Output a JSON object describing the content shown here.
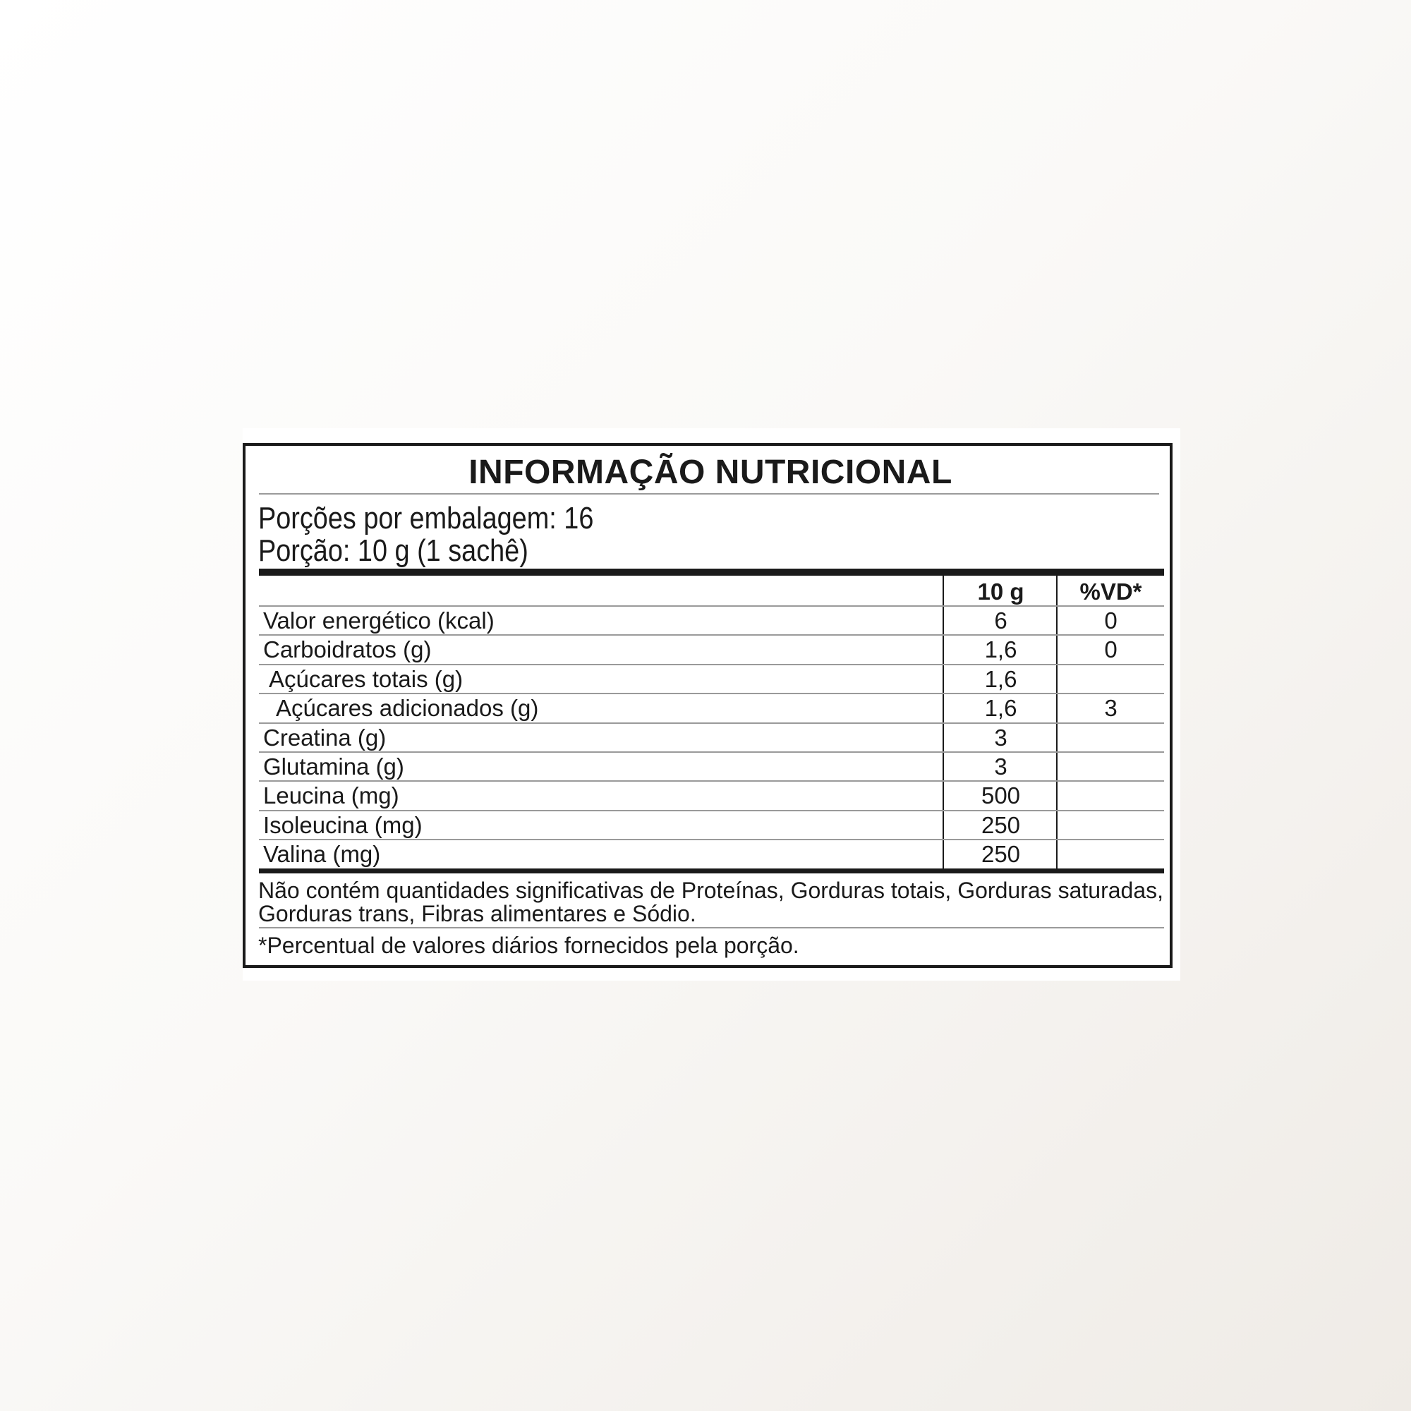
{
  "title": "INFORMAÇÃO NUTRICIONAL",
  "servings_per_package": "Porções por embalagem: 16",
  "serving_size": "Porção: 10 g (1 sachê)",
  "columns": {
    "amount": "10 g",
    "dv": "%VD*"
  },
  "rows": [
    {
      "label": "Valor energético (kcal)",
      "amount": "6",
      "dv": "0",
      "indent": 0
    },
    {
      "label": "Carboidratos (g)",
      "amount": "1,6",
      "dv": "0",
      "indent": 0
    },
    {
      "label": "Açúcares totais (g)",
      "amount": "1,6",
      "dv": "",
      "indent": 1
    },
    {
      "label": "Açúcares adicionados (g)",
      "amount": "1,6",
      "dv": "3",
      "indent": 2
    },
    {
      "label": "Creatina (g)",
      "amount": "3",
      "dv": "",
      "indent": 0
    },
    {
      "label": "Glutamina (g)",
      "amount": "3",
      "dv": "",
      "indent": 0
    },
    {
      "label": "Leucina (mg)",
      "amount": "500",
      "dv": "",
      "indent": 0
    },
    {
      "label": "Isoleucina (mg)",
      "amount": "250",
      "dv": "",
      "indent": 0
    },
    {
      "label": "Valina (mg)",
      "amount": "250",
      "dv": "",
      "indent": 0
    }
  ],
  "footnote_not_significant": "Não contém quantidades significativas de Proteínas, Gorduras totais, Gorduras saturadas, Gorduras trans, Fibras alimentares e Sódio.",
  "footnote_dv": "*Percentual de valores diários fornecidos pela porção."
}
